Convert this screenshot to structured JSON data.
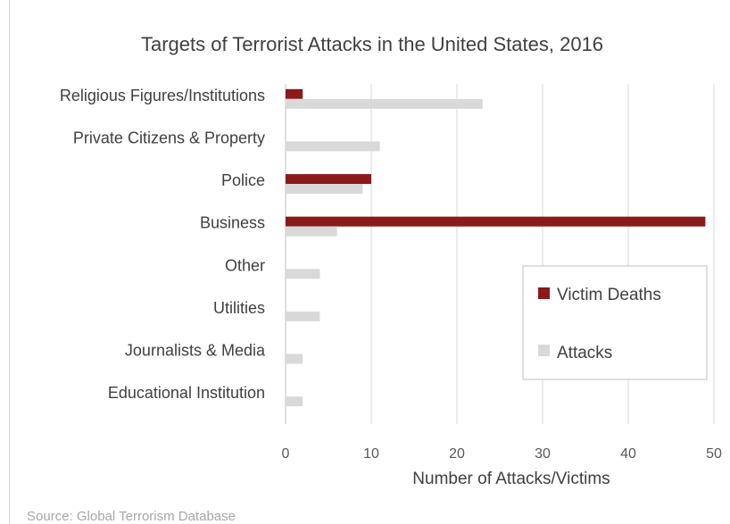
{
  "chart_data": {
    "type": "bar",
    "orientation": "horizontal",
    "title": "Targets of Terrorist Attacks in the United States, 2016",
    "xlabel": "Number of Attacks/Victims",
    "ylabel": "",
    "categories": [
      "Religious Figures/Institutions",
      "Private Citizens & Property",
      "Police",
      "Business",
      "Other",
      "Utilities",
      "Journalists & Media",
      "Educational Institution"
    ],
    "series": [
      {
        "name": "Victim Deaths",
        "color": "#8b1a1a",
        "values": [
          2,
          0,
          10,
          49,
          0,
          0,
          0,
          0
        ]
      },
      {
        "name": "Attacks",
        "color": "#d9d9d9",
        "values": [
          23,
          11,
          9,
          6,
          4,
          4,
          2,
          2
        ]
      }
    ],
    "xlim": [
      0,
      50
    ],
    "xticks": [
      0,
      10,
      20,
      30,
      40,
      50
    ],
    "grid": true,
    "legend_position": "right"
  },
  "source": "Source: Global Terrorism Database"
}
